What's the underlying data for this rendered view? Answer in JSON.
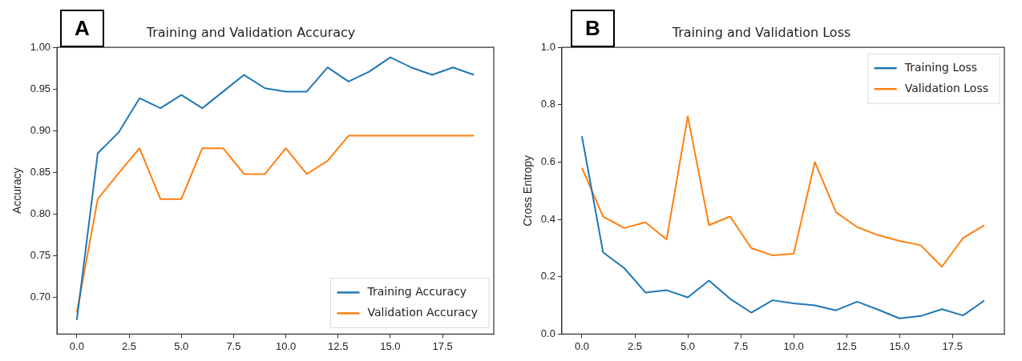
{
  "chart_data": [
    {
      "type": "line",
      "title": "Training and Validation Accuracy",
      "ylabel": "Accuracy",
      "annotations": [
        "A"
      ],
      "x": [
        0,
        1,
        2,
        3,
        4,
        5,
        6,
        7,
        8,
        9,
        10,
        11,
        12,
        13,
        14,
        15,
        16,
        17,
        18,
        19
      ],
      "series": [
        {
          "name": "Training Accuracy",
          "color": "#1f77b4",
          "values": [
            0.673,
            0.873,
            0.898,
            0.939,
            0.927,
            0.943,
            0.927,
            0.947,
            0.967,
            0.951,
            0.947,
            0.947,
            0.976,
            0.959,
            0.971,
            0.988,
            0.976,
            0.967,
            0.976,
            0.967
          ]
        },
        {
          "name": "Validation Accuracy",
          "color": "#ff7f0e",
          "values": [
            0.682,
            0.818,
            0.849,
            0.879,
            0.818,
            0.818,
            0.879,
            0.879,
            0.848,
            0.848,
            0.879,
            0.848,
            0.864,
            0.894,
            0.894,
            0.894,
            0.894,
            0.894,
            0.894,
            0.894
          ]
        }
      ],
      "xlim": [
        -0.95,
        19.95
      ],
      "xticks": [
        {
          "value": 0,
          "label": "0.0"
        },
        {
          "value": 2.5,
          "label": "2.5"
        },
        {
          "value": 5,
          "label": "5.0"
        },
        {
          "value": 7.5,
          "label": "7.5"
        },
        {
          "value": 10,
          "label": "10.0"
        },
        {
          "value": 12.5,
          "label": "12.5"
        },
        {
          "value": 15,
          "label": "15.0"
        },
        {
          "value": 17.5,
          "label": "17.5"
        }
      ],
      "ylim": [
        0.656,
        1.0
      ],
      "yticks": [
        {
          "value": 0.7,
          "label": "0.70"
        },
        {
          "value": 0.75,
          "label": "0.75"
        },
        {
          "value": 0.8,
          "label": "0.80"
        },
        {
          "value": 0.85,
          "label": "0.85"
        },
        {
          "value": 0.9,
          "label": "0.90"
        },
        {
          "value": 0.95,
          "label": "0.95"
        },
        {
          "value": 1.0,
          "label": "1.00"
        }
      ],
      "legend": "bottom right",
      "grid": false,
      "marker": "none",
      "line_style": "solid"
    },
    {
      "type": "line",
      "title": "Training and Validation Loss",
      "ylabel": "Cross Entropy",
      "annotations": [
        "B"
      ],
      "x": [
        0,
        1,
        2,
        3,
        4,
        5,
        6,
        7,
        8,
        9,
        10,
        11,
        12,
        13,
        14,
        15,
        16,
        17,
        18,
        19
      ],
      "series": [
        {
          "name": "Training Loss",
          "color": "#1f77b4",
          "values": [
            0.69,
            0.285,
            0.23,
            0.145,
            0.153,
            0.128,
            0.187,
            0.123,
            0.075,
            0.118,
            0.107,
            0.1,
            0.083,
            0.113,
            0.085,
            0.055,
            0.063,
            0.087,
            0.065,
            0.117
          ]
        },
        {
          "name": "Validation Loss",
          "color": "#ff7f0e",
          "values": [
            0.58,
            0.41,
            0.37,
            0.39,
            0.33,
            0.76,
            0.38,
            0.41,
            0.3,
            0.275,
            0.28,
            0.6,
            0.425,
            0.373,
            0.345,
            0.325,
            0.31,
            0.235,
            0.335,
            0.38
          ]
        }
      ],
      "xlim": [
        -0.95,
        19.95
      ],
      "xticks": [
        {
          "value": 0,
          "label": "0.0"
        },
        {
          "value": 2.5,
          "label": "2.5"
        },
        {
          "value": 5,
          "label": "5.0"
        },
        {
          "value": 7.5,
          "label": "7.5"
        },
        {
          "value": 10,
          "label": "10.0"
        },
        {
          "value": 12.5,
          "label": "12.5"
        },
        {
          "value": 15,
          "label": "15.0"
        },
        {
          "value": 17.5,
          "label": "17.5"
        }
      ],
      "ylim": [
        0,
        1.0
      ],
      "yticks": [
        {
          "value": 0,
          "label": "0.0"
        },
        {
          "value": 0.2,
          "label": "0.2"
        },
        {
          "value": 0.4,
          "label": "0.4"
        },
        {
          "value": 0.6,
          "label": "0.6"
        },
        {
          "value": 0.8,
          "label": "0.8"
        },
        {
          "value": 1.0,
          "label": "1.0"
        }
      ],
      "legend": "top right",
      "grid": false,
      "marker": "none",
      "line_style": "solid"
    }
  ]
}
